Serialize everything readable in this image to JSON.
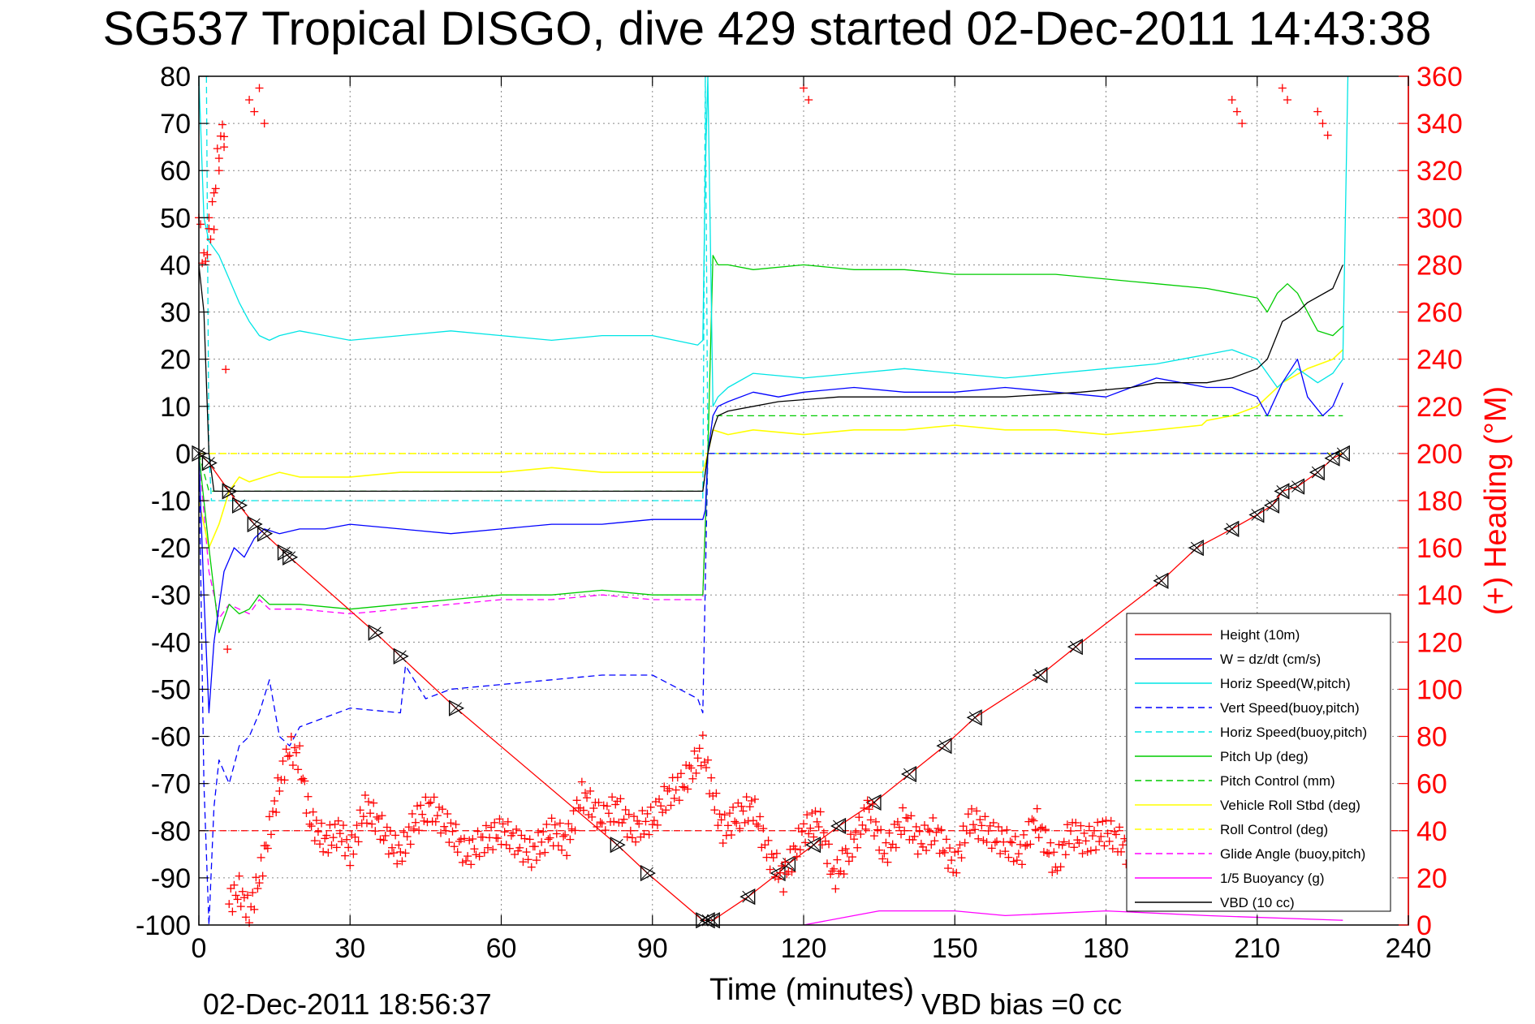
{
  "chart_data": {
    "type": "line",
    "title": "SG537 Tropical DISGO, dive 429 started 02-Dec-2011 14:43:38",
    "xlabel": "Time (minutes)",
    "ylabel": "",
    "ylabel_right": "(+) Heading (°M)",
    "xlim": [
      0,
      240
    ],
    "ylim": [
      -100,
      80
    ],
    "ylim_right": [
      0,
      360
    ],
    "x_ticks": [
      "0",
      "30",
      "60",
      "90",
      "120",
      "150",
      "180",
      "210",
      "240"
    ],
    "y_ticks": [
      "80",
      "70",
      "60",
      "50",
      "40",
      "30",
      "20",
      "10",
      "0",
      "-10",
      "-20",
      "-30",
      "-40",
      "-50",
      "-60",
      "-70",
      "-80",
      "-90",
      "-100"
    ],
    "y_ticks_right": [
      "360",
      "340",
      "320",
      "300",
      "280",
      "260",
      "240",
      "220",
      "200",
      "180",
      "160",
      "140",
      "120",
      "100",
      "80",
      "60",
      "40",
      "20",
      "0"
    ],
    "grid": true,
    "legend_position": "bottom-right",
    "footer_left": "02-Dec-2011 18:56:37",
    "footer_right": "VBD bias =0 cc",
    "series": [
      {
        "name": "Height (10m)",
        "color": "#ff0000",
        "style": "solid",
        "x": [
          0,
          2,
          6,
          8,
          11,
          13,
          17,
          18,
          35,
          40,
          51,
          83,
          89,
          100,
          101,
          102,
          109,
          115,
          117,
          122,
          127,
          134,
          141,
          148,
          154,
          167,
          174,
          191,
          198,
          205,
          210,
          213,
          215,
          218,
          222,
          225,
          227
        ],
        "values": [
          0,
          -2,
          -8,
          -11,
          -15,
          -17,
          -21,
          -22,
          -38,
          -43,
          -54,
          -83,
          -89,
          -99,
          -99,
          -99,
          -94,
          -89,
          -87,
          -83,
          -79,
          -74,
          -68,
          -62,
          -56,
          -47,
          -41,
          -27,
          -20,
          -16,
          -13,
          -11,
          -8,
          -7,
          -4,
          -1,
          0
        ]
      },
      {
        "name": "W = dz/dt (cm/s)",
        "color": "#0000ff",
        "style": "solid",
        "x": [
          0,
          1,
          2,
          3,
          5,
          7,
          9,
          11,
          13,
          16,
          20,
          25,
          30,
          40,
          50,
          60,
          70,
          80,
          90,
          100,
          100.5,
          101,
          102,
          103,
          105,
          110,
          115,
          120,
          130,
          140,
          150,
          160,
          170,
          180,
          190,
          195,
          200,
          205,
          210,
          212,
          215,
          218,
          220,
          223,
          225,
          227
        ],
        "values": [
          0,
          -30,
          -55,
          -40,
          -25,
          -20,
          -22,
          -18,
          -16,
          -17,
          -16,
          -16,
          -15,
          -16,
          -17,
          -16,
          -15,
          -15,
          -14,
          -14,
          -12,
          0,
          8,
          10,
          11,
          13,
          12,
          13,
          14,
          13,
          13,
          14,
          13,
          12,
          16,
          15,
          14,
          14,
          12,
          8,
          15,
          20,
          12,
          8,
          10,
          15
        ]
      },
      {
        "name": "Horiz Speed(W,pitch)",
        "color": "#00e5e5",
        "style": "solid",
        "x": [
          0,
          1,
          2,
          4,
          6,
          8,
          10,
          12,
          14,
          16,
          20,
          30,
          40,
          50,
          60,
          70,
          80,
          90,
          99,
          100,
          100.5,
          101,
          102,
          103,
          105,
          110,
          120,
          130,
          140,
          150,
          160,
          170,
          180,
          190,
          195,
          200,
          205,
          210,
          214,
          218,
          222,
          225,
          227,
          228
        ],
        "values": [
          80,
          50,
          45,
          42,
          37,
          32,
          28,
          25,
          24,
          25,
          26,
          24,
          25,
          26,
          25,
          24,
          25,
          25,
          23,
          24,
          60,
          80,
          10,
          12,
          14,
          17,
          16,
          17,
          18,
          17,
          16,
          17,
          18,
          19,
          20,
          21,
          22,
          20,
          14,
          18,
          15,
          17,
          20,
          80
        ]
      },
      {
        "name": "Vert Speed(buoy,pitch)",
        "color": "#0000ff",
        "style": "dashed",
        "x": [
          0,
          1,
          2,
          3,
          4,
          6,
          8,
          10,
          12,
          14,
          16,
          18,
          20,
          30,
          40,
          41,
          45,
          50,
          60,
          70,
          80,
          90,
          99,
          100,
          101,
          102,
          150,
          200,
          227
        ],
        "values": [
          0,
          -70,
          -100,
          -75,
          -65,
          -70,
          -62,
          -60,
          -55,
          -48,
          -60,
          -62,
          -58,
          -54,
          -55,
          -45,
          -52,
          -50,
          -49,
          -48,
          -47,
          -47,
          -52,
          -55,
          0,
          0,
          0,
          0,
          0
        ]
      },
      {
        "name": "Horiz Speed(buoy,pitch)",
        "color": "#00e5e5",
        "style": "dashed",
        "x": [
          1.5,
          2,
          2.5,
          100,
          100.5,
          101,
          102,
          227
        ],
        "values": [
          80,
          0,
          -10,
          -10,
          80,
          0,
          0,
          0
        ]
      },
      {
        "name": "Pitch Up (deg)",
        "color": "#00cc00",
        "style": "solid",
        "x": [
          0,
          2,
          4,
          6,
          8,
          10,
          12,
          14,
          20,
          30,
          40,
          50,
          60,
          70,
          80,
          90,
          100,
          101,
          102,
          103,
          105,
          110,
          120,
          130,
          140,
          150,
          160,
          170,
          180,
          190,
          200,
          205,
          210,
          212,
          214,
          216,
          218,
          220,
          222,
          225,
          227
        ],
        "values": [
          0,
          -20,
          -38,
          -32,
          -34,
          -33,
          -30,
          -32,
          -32,
          -33,
          -32,
          -31,
          -30,
          -30,
          -29,
          -30,
          -30,
          0,
          42,
          40,
          40,
          39,
          40,
          39,
          39,
          38,
          38,
          38,
          37,
          36,
          35,
          34,
          33,
          30,
          34,
          36,
          34,
          30,
          26,
          25,
          27
        ]
      },
      {
        "name": "Pitch Control (mm)",
        "color": "#00cc00",
        "style": "dashed",
        "x": [
          0,
          2,
          4,
          100,
          101,
          102,
          227
        ],
        "values": [
          0,
          -8,
          -8,
          -8,
          0,
          8,
          8
        ]
      },
      {
        "name": "Vehicle Roll Stbd (deg)",
        "color": "#ffff00",
        "style": "solid",
        "x": [
          0,
          2,
          4,
          6,
          8,
          10,
          13,
          16,
          20,
          30,
          40,
          50,
          60,
          70,
          80,
          90,
          100,
          101,
          102,
          105,
          110,
          120,
          130,
          140,
          150,
          160,
          170,
          180,
          190,
          199,
          200,
          205,
          210,
          215,
          220,
          225,
          227
        ],
        "values": [
          -10,
          -20,
          -15,
          -8,
          -5,
          -6,
          -5,
          -4,
          -5,
          -5,
          -4,
          -4,
          -4,
          -3,
          -4,
          -4,
          -4,
          0,
          5,
          4,
          5,
          4,
          5,
          5,
          6,
          5,
          5,
          4,
          5,
          6,
          7,
          8,
          10,
          15,
          18,
          20,
          22
        ]
      },
      {
        "name": "Roll Control (deg)",
        "color": "#ffff00",
        "style": "dashed",
        "x": [
          0,
          2,
          100,
          101,
          227
        ],
        "values": [
          0,
          0,
          0,
          0,
          0
        ]
      },
      {
        "name": "Glide Angle (buoy,pitch)",
        "color": "#ff00ff",
        "style": "dashed",
        "x": [
          0,
          2,
          4,
          6,
          8,
          10,
          12,
          14,
          20,
          30,
          40,
          50,
          60,
          70,
          80,
          90,
          100,
          101,
          102,
          227
        ],
        "values": [
          0,
          -25,
          -35,
          -32,
          -33,
          -34,
          -31,
          -33,
          -33,
          -34,
          -33,
          -32,
          -31,
          -31,
          -30,
          -31,
          -31,
          0,
          0,
          0
        ]
      },
      {
        "name": "1/5 Buoyancy (g)",
        "color": "#ff00ff",
        "style": "solid",
        "x": [
          120,
          130,
          135,
          150,
          160,
          180,
          200,
          227
        ],
        "values": [
          -100,
          -98,
          -97,
          -97,
          -98,
          -97,
          -98,
          -99
        ]
      },
      {
        "name": "VBD (10 cc)",
        "color": "#000000",
        "style": "solid",
        "x": [
          0,
          1,
          2,
          3,
          100,
          101,
          102,
          103,
          105,
          110,
          115,
          127,
          145,
          160,
          175,
          185,
          190,
          200,
          205,
          210,
          212,
          215,
          218,
          220,
          225,
          227
        ],
        "values": [
          40,
          30,
          0,
          -8,
          -8,
          0,
          5,
          8,
          9,
          10,
          11,
          12,
          12,
          12,
          13,
          14,
          15,
          15,
          16,
          18,
          20,
          28,
          30,
          32,
          35,
          40
        ]
      }
    ],
    "heading": {
      "name": "(+) Heading",
      "color": "#ff0000",
      "x": [
        0,
        1,
        2,
        3,
        4,
        5,
        6,
        8,
        10,
        12,
        14,
        16,
        18,
        20,
        22,
        25,
        28,
        30,
        33,
        35,
        38,
        40,
        43,
        46,
        50,
        53,
        56,
        60,
        63,
        66,
        70,
        73,
        76,
        80,
        83,
        86,
        90,
        93,
        96,
        99,
        100,
        102,
        104,
        106,
        110,
        113,
        116,
        120,
        123,
        126,
        130,
        133,
        136,
        140,
        143,
        146,
        150,
        153,
        156,
        160,
        163,
        166,
        170,
        173,
        176,
        180,
        183,
        186,
        190,
        193,
        196,
        200,
        203,
        206,
        210,
        213,
        216,
        220,
        223,
        226
      ],
      "values": [
        300,
        280,
        290,
        310,
        330,
        340,
        10,
        15,
        5,
        20,
        40,
        60,
        75,
        70,
        45,
        35,
        40,
        30,
        50,
        45,
        35,
        30,
        45,
        50,
        40,
        30,
        35,
        40,
        35,
        30,
        40,
        35,
        55,
        45,
        50,
        40,
        45,
        55,
        60,
        70,
        75,
        55,
        40,
        45,
        50,
        30,
        20,
        40,
        45,
        20,
        35,
        50,
        30,
        45,
        35,
        40,
        25,
        45,
        40,
        35,
        30,
        45,
        25,
        40,
        35,
        40,
        35,
        25,
        45,
        40,
        35,
        45,
        40,
        30,
        20,
        40,
        45,
        60,
        55,
        40
      ],
      "scatter_extra": [
        [
          2,
          300
        ],
        [
          3,
          295
        ],
        [
          4,
          320
        ],
        [
          5,
          330
        ],
        [
          10,
          350
        ],
        [
          11,
          345
        ],
        [
          12,
          355
        ],
        [
          13,
          340
        ],
        [
          120,
          355
        ],
        [
          121,
          350
        ],
        [
          205,
          350
        ],
        [
          206,
          345
        ],
        [
          207,
          340
        ],
        [
          215,
          355
        ],
        [
          216,
          350
        ],
        [
          222,
          345
        ],
        [
          223,
          340
        ],
        [
          224,
          335
        ]
      ],
      "reference_line": 40
    }
  },
  "legend": {
    "items": [
      {
        "label": "Height (10m)",
        "color": "#ff0000",
        "style": "solid"
      },
      {
        "label": "W = dz/dt (cm/s)",
        "color": "#0000ff",
        "style": "solid"
      },
      {
        "label": "Horiz Speed(W,pitch)",
        "color": "#00e5e5",
        "style": "solid"
      },
      {
        "label": "Vert Speed(buoy,pitch)",
        "color": "#0000ff",
        "style": "dashed"
      },
      {
        "label": "Horiz Speed(buoy,pitch)",
        "color": "#00e5e5",
        "style": "dashed"
      },
      {
        "label": "Pitch Up (deg)",
        "color": "#00cc00",
        "style": "solid"
      },
      {
        "label": "Pitch Control (mm)",
        "color": "#00cc00",
        "style": "dashed"
      },
      {
        "label": "Vehicle Roll Stbd (deg)",
        "color": "#ffff00",
        "style": "solid"
      },
      {
        "label": "Roll Control (deg)",
        "color": "#ffff00",
        "style": "dashed"
      },
      {
        "label": "Glide Angle (buoy,pitch)",
        "color": "#ff00ff",
        "style": "dashed"
      },
      {
        "label": "1/5 Buoyancy (g)",
        "color": "#ff00ff",
        "style": "solid"
      },
      {
        "label": "VBD (10 cc)",
        "color": "#000000",
        "style": "solid"
      }
    ]
  }
}
